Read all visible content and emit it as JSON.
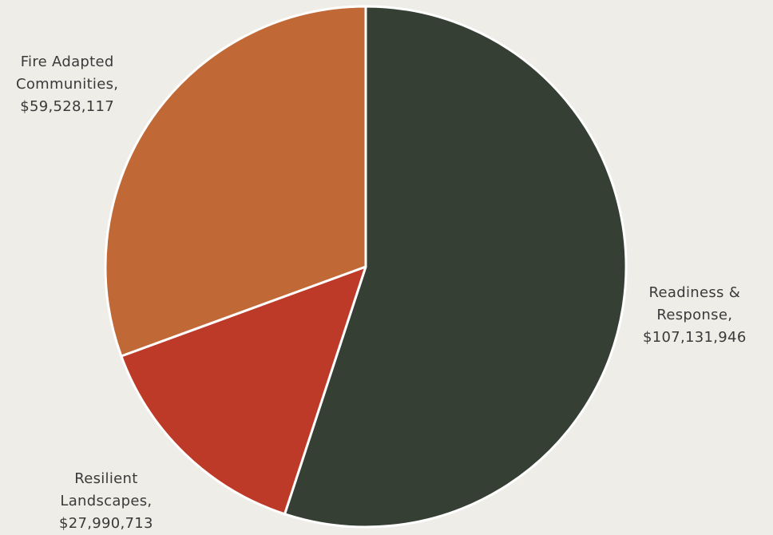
{
  "chart_data": {
    "type": "pie",
    "slices": [
      {
        "category": "Readiness & Response",
        "value": 107131946,
        "label_lines": [
          "Readiness &",
          "Response,",
          "$107,131,946"
        ],
        "color": "#353f33"
      },
      {
        "category": "Resilient Landscapes",
        "value": 27990713,
        "label_lines": [
          "Resilient",
          "Landscapes,",
          "$27,990,713"
        ],
        "color": "#be3a28"
      },
      {
        "category": "Fire Adapted Communities",
        "value": 59528117,
        "label_lines": [
          "Fire Adapted",
          "Communities,",
          "$59,528,117"
        ],
        "color": "#c06937"
      }
    ],
    "start_angle_deg": 0,
    "direction": "clockwise",
    "slice_border_color": "#ffffff",
    "background": "#efede8"
  }
}
